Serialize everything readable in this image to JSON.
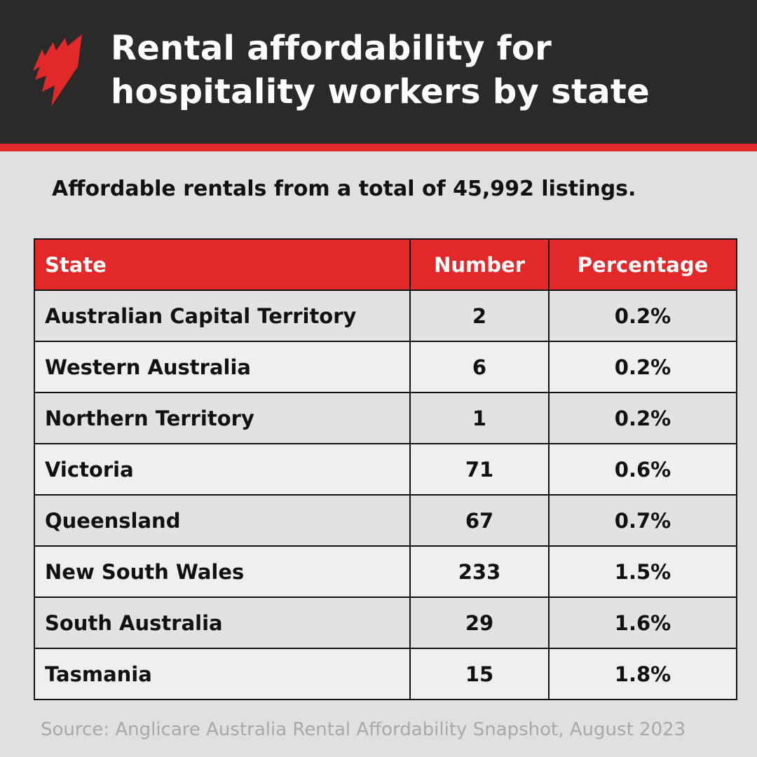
{
  "title": "Rental affordability for hospitality workers by state",
  "title_lines": [
    "Rental affordability for",
    "hospitality workers by state"
  ],
  "subtitle": "Affordable rentals from a total of 45,992 listings.",
  "table": {
    "headers": [
      "State",
      "Number",
      "Percentage"
    ],
    "rows": [
      [
        "Australian Capital Territory",
        "2",
        "0.2%"
      ],
      [
        "Western Australia",
        "6",
        "0.2%"
      ],
      [
        "Northern Territory",
        "1",
        "0.2%"
      ],
      [
        "Victoria",
        "71",
        "0.6%"
      ],
      [
        "Queensland",
        "67",
        "0.7%"
      ],
      [
        "New South Wales",
        "233",
        "1.5%"
      ],
      [
        "South Australia",
        "29",
        "1.6%"
      ],
      [
        "Tasmania",
        "15",
        "1.8%"
      ]
    ]
  },
  "source": "Source: Anglicare Australia Rental Affordability Snapshot, August 2023",
  "colors": {
    "header_bg": "#2a2a2a",
    "accent": "#e22828",
    "background": "#e0e0e0"
  },
  "logo": "sbs-logo"
}
